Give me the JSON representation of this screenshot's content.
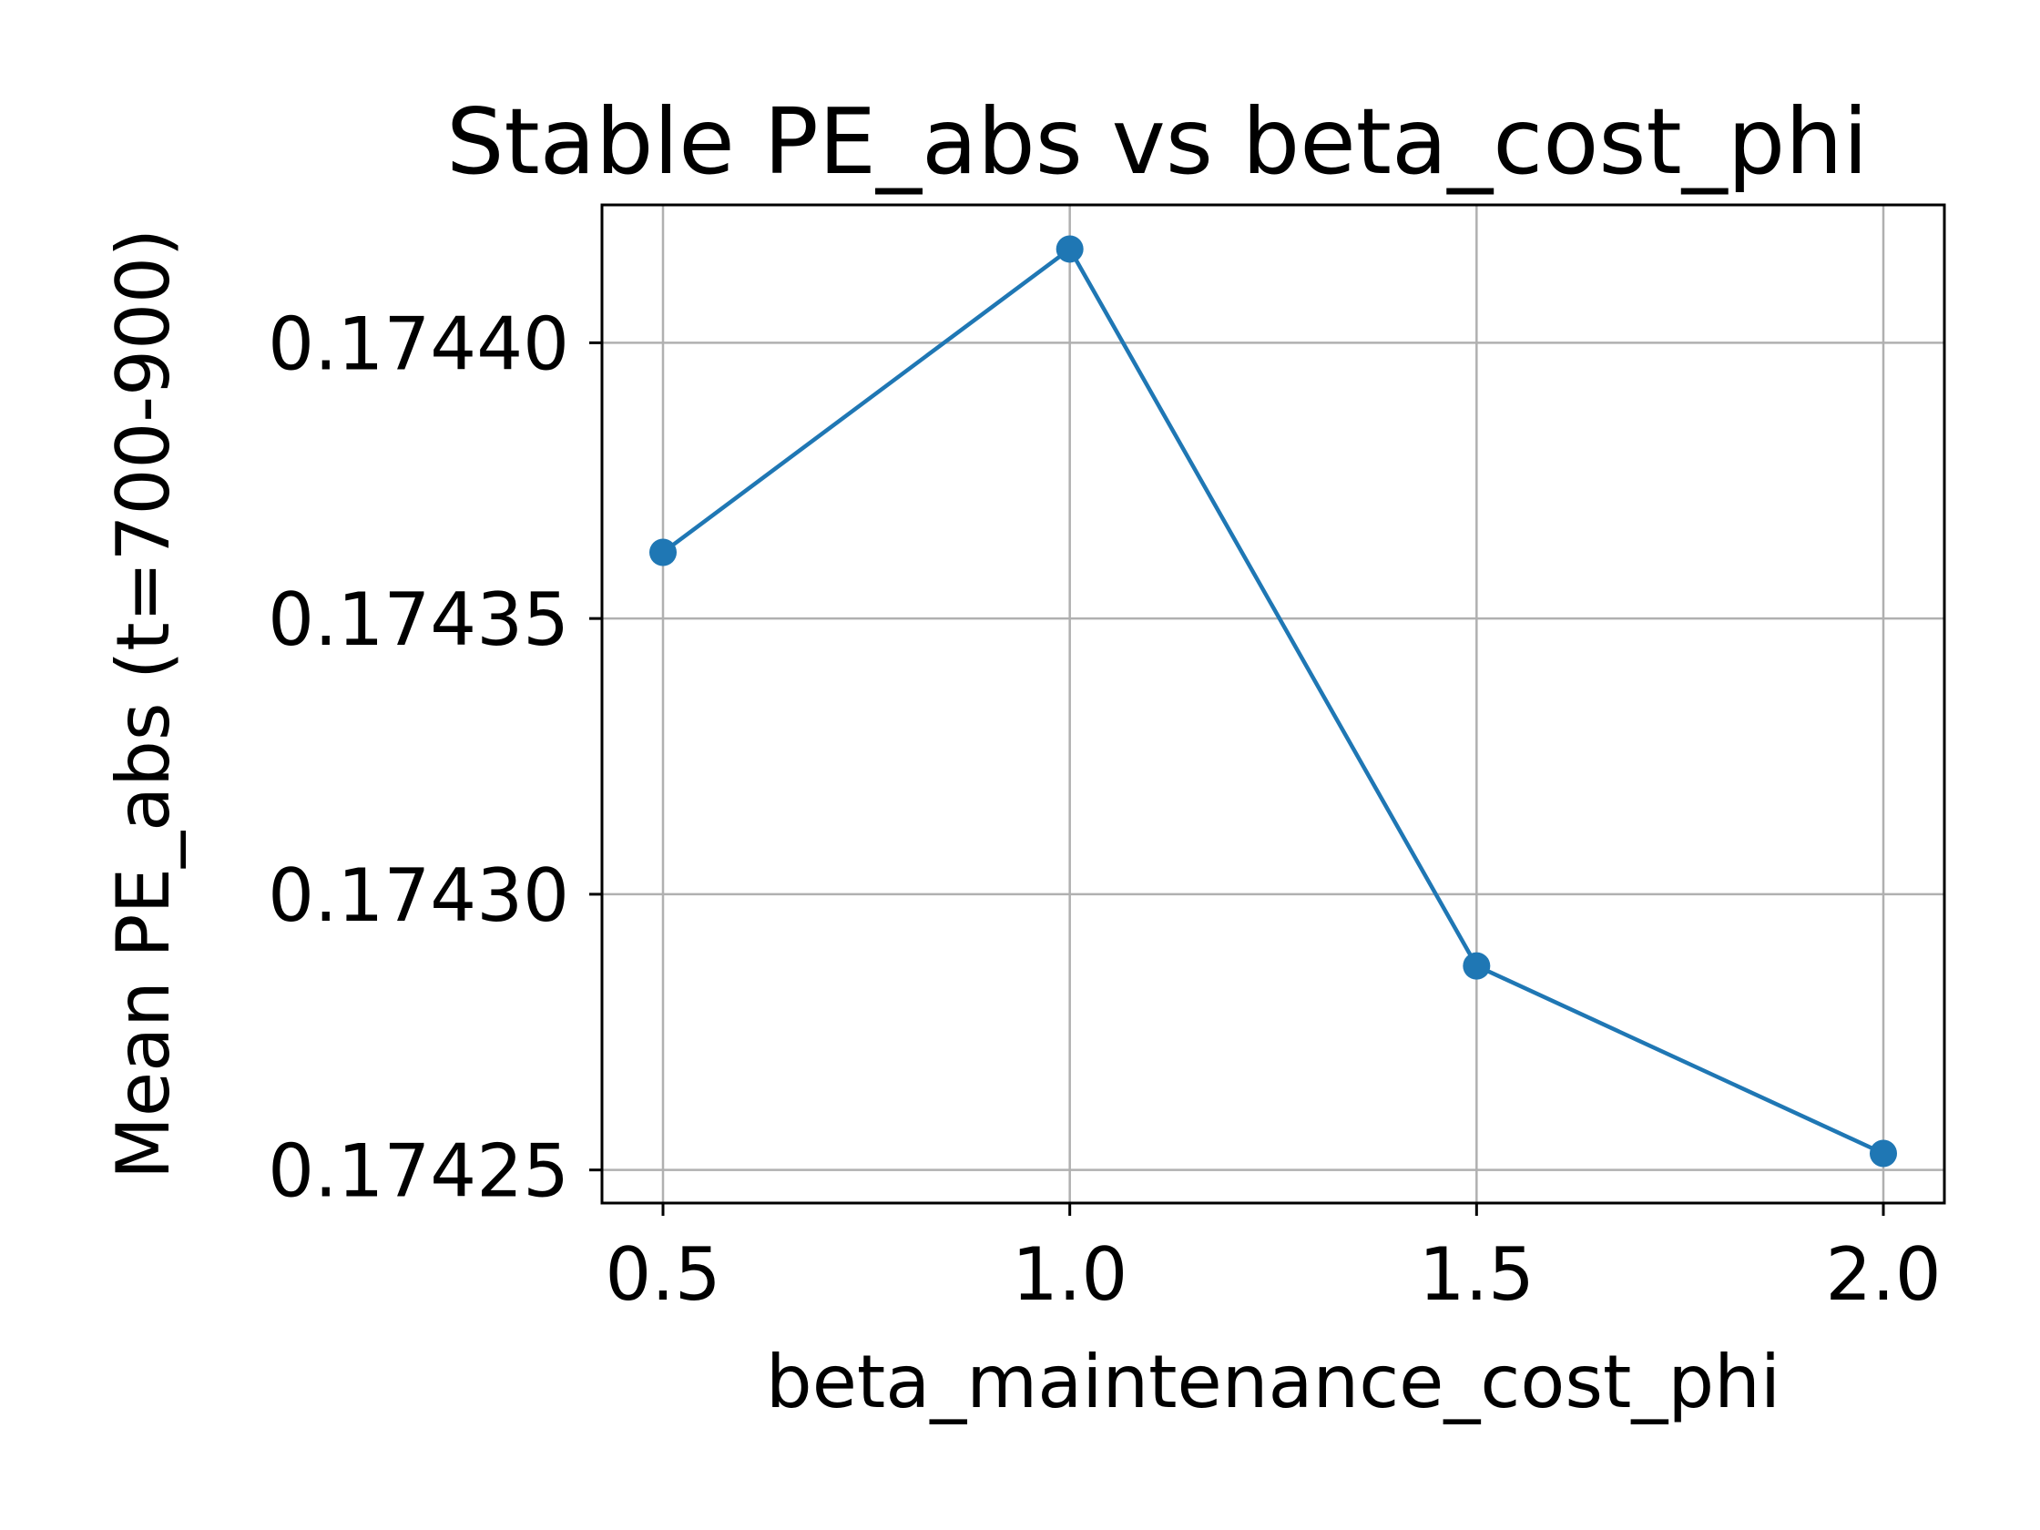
{
  "chart_data": {
    "type": "line",
    "title": "Stable PE_abs vs beta_cost_phi",
    "xlabel": "beta_maintenance_cost_phi",
    "ylabel": "Mean PE_abs (t=700-900)",
    "xlim": [
      0.425,
      2.075
    ],
    "ylim": [
      0.174244,
      0.174425
    ],
    "x_ticks": [
      0.5,
      1.0,
      1.5,
      2.0
    ],
    "x_tick_labels": [
      "0.5",
      "1.0",
      "1.5",
      "2.0"
    ],
    "y_ticks": [
      0.17425,
      0.1743,
      0.17435,
      0.1744
    ],
    "y_tick_labels": [
      "0.17425",
      "0.17430",
      "0.17435",
      "0.17440"
    ],
    "grid": true,
    "legend": "none",
    "series": [
      {
        "color": "#1f77b4",
        "marker": "circle",
        "x": [
          0.5,
          1.0,
          1.5,
          2.0
        ],
        "y": [
          0.174362,
          0.174417,
          0.174287,
          0.174253
        ]
      }
    ]
  }
}
